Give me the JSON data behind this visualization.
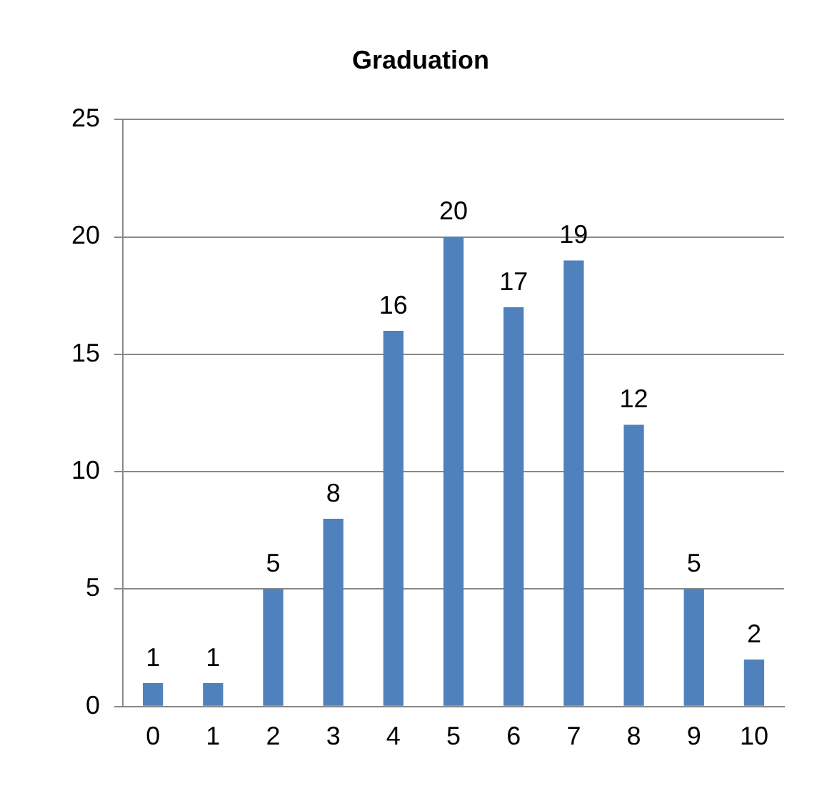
{
  "chart_data": {
    "type": "bar",
    "title": "Graduation",
    "categories": [
      "0",
      "1",
      "2",
      "3",
      "4",
      "5",
      "6",
      "7",
      "8",
      "9",
      "10"
    ],
    "values": [
      1,
      1,
      5,
      8,
      16,
      20,
      17,
      19,
      12,
      5,
      2
    ],
    "color": "#4f81bd",
    "ylim": [
      0,
      25
    ],
    "yticks": [
      0,
      5,
      10,
      15,
      20,
      25
    ],
    "grid": "y",
    "data_labels": true,
    "legend": false
  }
}
